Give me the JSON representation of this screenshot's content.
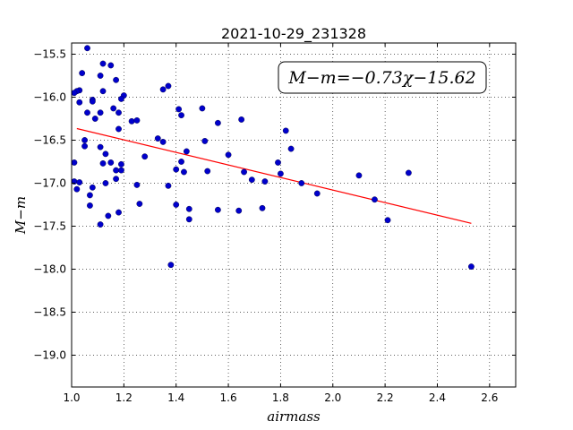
{
  "chart_data": {
    "type": "scatter",
    "title": "2021-10-29_231328",
    "xlabel": "airmass",
    "ylabel": "M−m",
    "xlim": [
      1.0,
      2.7
    ],
    "ylim": [
      -19.37,
      -15.37
    ],
    "ytick_values": [
      -15.5,
      -16.0,
      -16.5,
      -17.0,
      -17.5,
      -18.0,
      -18.5,
      -19.0
    ],
    "ytick_labels": [
      "−15.5",
      "−16.0",
      "−16.5",
      "−17.0",
      "−17.5",
      "−18.0",
      "−18.5",
      "−19.0"
    ],
    "xtick_values": [
      1.0,
      1.2,
      1.4,
      1.6,
      1.8,
      2.0,
      2.2,
      2.4,
      2.6
    ],
    "xtick_labels": [
      "1.0",
      "1.2",
      "1.4",
      "1.6",
      "1.8",
      "2.0",
      "2.2",
      "2.4",
      "2.6"
    ],
    "grid": true,
    "annotation": "M−m=−0.73χ−15.62",
    "fit": {
      "slope": -0.73,
      "intercept": -15.62,
      "x_start": 1.02,
      "x_end": 2.53,
      "color": "#ff0000"
    },
    "point_color": "#0000cc",
    "points": [
      [
        1.06,
        -15.43
      ],
      [
        1.12,
        -15.61
      ],
      [
        1.15,
        -15.63
      ],
      [
        1.04,
        -15.72
      ],
      [
        1.11,
        -15.75
      ],
      [
        1.17,
        -15.8
      ],
      [
        1.03,
        -15.92
      ],
      [
        1.02,
        -15.93
      ],
      [
        1.01,
        -15.95
      ],
      [
        1.12,
        -15.93
      ],
      [
        1.2,
        -15.98
      ],
      [
        1.19,
        -16.02
      ],
      [
        1.08,
        -16.03
      ],
      [
        1.08,
        -16.05
      ],
      [
        1.03,
        -16.06
      ],
      [
        1.06,
        -16.18
      ],
      [
        1.11,
        -16.18
      ],
      [
        1.16,
        -16.13
      ],
      [
        1.18,
        -16.18
      ],
      [
        1.09,
        -16.25
      ],
      [
        1.23,
        -16.28
      ],
      [
        1.25,
        -16.27
      ],
      [
        1.18,
        -16.37
      ],
      [
        1.05,
        -16.5
      ],
      [
        1.05,
        -16.57
      ],
      [
        1.11,
        -16.58
      ],
      [
        1.13,
        -16.66
      ],
      [
        1.01,
        -16.76
      ],
      [
        1.12,
        -16.77
      ],
      [
        1.15,
        -16.76
      ],
      [
        1.19,
        -16.78
      ],
      [
        1.17,
        -16.85
      ],
      [
        1.19,
        -16.85
      ],
      [
        1.17,
        -16.95
      ],
      [
        1.01,
        -16.98
      ],
      [
        1.03,
        -16.99
      ],
      [
        1.13,
        -17.0
      ],
      [
        1.02,
        -17.07
      ],
      [
        1.08,
        -17.05
      ],
      [
        1.25,
        -17.02
      ],
      [
        1.07,
        -17.14
      ],
      [
        1.07,
        -17.26
      ],
      [
        1.14,
        -17.38
      ],
      [
        1.18,
        -17.34
      ],
      [
        1.11,
        -17.48
      ],
      [
        1.26,
        -17.24
      ],
      [
        1.28,
        -16.69
      ],
      [
        1.33,
        -16.48
      ],
      [
        1.35,
        -15.91
      ],
      [
        1.37,
        -15.87
      ],
      [
        1.35,
        -16.52
      ],
      [
        1.41,
        -16.14
      ],
      [
        1.42,
        -16.21
      ],
      [
        1.44,
        -16.63
      ],
      [
        1.42,
        -16.75
      ],
      [
        1.4,
        -16.84
      ],
      [
        1.43,
        -16.87
      ],
      [
        1.37,
        -17.03
      ],
      [
        1.4,
        -17.25
      ],
      [
        1.45,
        -17.3
      ],
      [
        1.45,
        -17.42
      ],
      [
        1.38,
        -17.95
      ],
      [
        1.5,
        -16.13
      ],
      [
        1.51,
        -16.51
      ],
      [
        1.52,
        -16.86
      ],
      [
        1.56,
        -16.3
      ],
      [
        1.56,
        -17.31
      ],
      [
        1.6,
        -16.67
      ],
      [
        1.64,
        -17.32
      ],
      [
        1.65,
        -16.26
      ],
      [
        1.66,
        -16.87
      ],
      [
        1.69,
        -16.96
      ],
      [
        1.73,
        -17.29
      ],
      [
        1.74,
        -16.98
      ],
      [
        1.79,
        -16.76
      ],
      [
        1.8,
        -16.89
      ],
      [
        1.82,
        -16.39
      ],
      [
        1.84,
        -16.6
      ],
      [
        1.88,
        -17.0
      ],
      [
        1.94,
        -17.12
      ],
      [
        2.1,
        -16.91
      ],
      [
        2.16,
        -17.19
      ],
      [
        2.21,
        -17.43
      ],
      [
        2.29,
        -16.88
      ],
      [
        2.53,
        -17.97
      ]
    ]
  }
}
